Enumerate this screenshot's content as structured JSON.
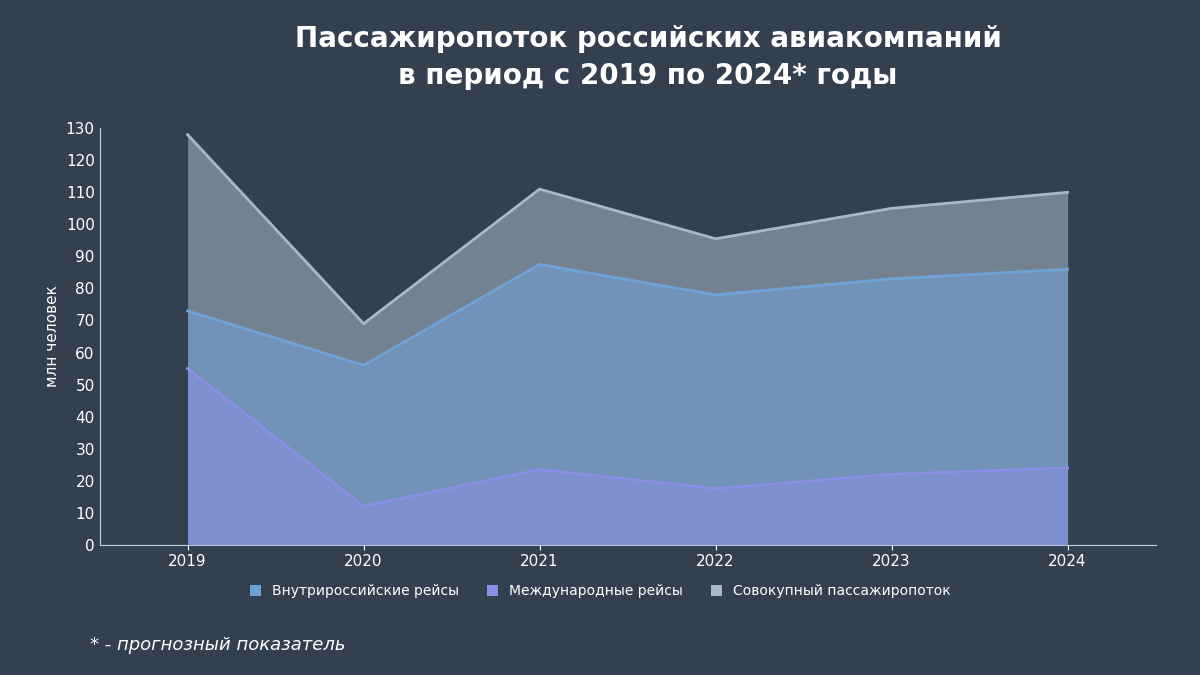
{
  "chart_data": {
    "type": "area",
    "title": "Пассажиропоток российских авиакомпаний\nв период с 2019 по 2024* годы",
    "y_label": "млн человек",
    "annotations": [
      "* - прогнозный показатель"
    ],
    "x": [
      2019,
      2020,
      2021,
      2022,
      2023,
      2024
    ],
    "xlim": [
      2018.5,
      2024.5
    ],
    "xticks": [
      2019,
      2020,
      2021,
      2022,
      2023,
      2024
    ],
    "ylim": [
      0,
      130
    ],
    "yticks": [
      0,
      10,
      20,
      30,
      40,
      50,
      60,
      70,
      80,
      90,
      100,
      110,
      120,
      130
    ],
    "stacked": false,
    "grid": false,
    "legend": "lower center",
    "series": [
      {
        "name": "Внутрироссийские рейсы",
        "color": "#6fa3d8",
        "values": [
          73,
          56,
          87.5,
          78,
          83,
          86
        ]
      },
      {
        "name": "Международные рейсы",
        "color": "#8b8fe6",
        "values": [
          55,
          12,
          23.5,
          17.5,
          22,
          24
        ]
      },
      {
        "name": "Совокупный пассажиропоток",
        "color": "#a7b8c9",
        "values": [
          128,
          69,
          111,
          95.5,
          105,
          110
        ]
      }
    ]
  }
}
